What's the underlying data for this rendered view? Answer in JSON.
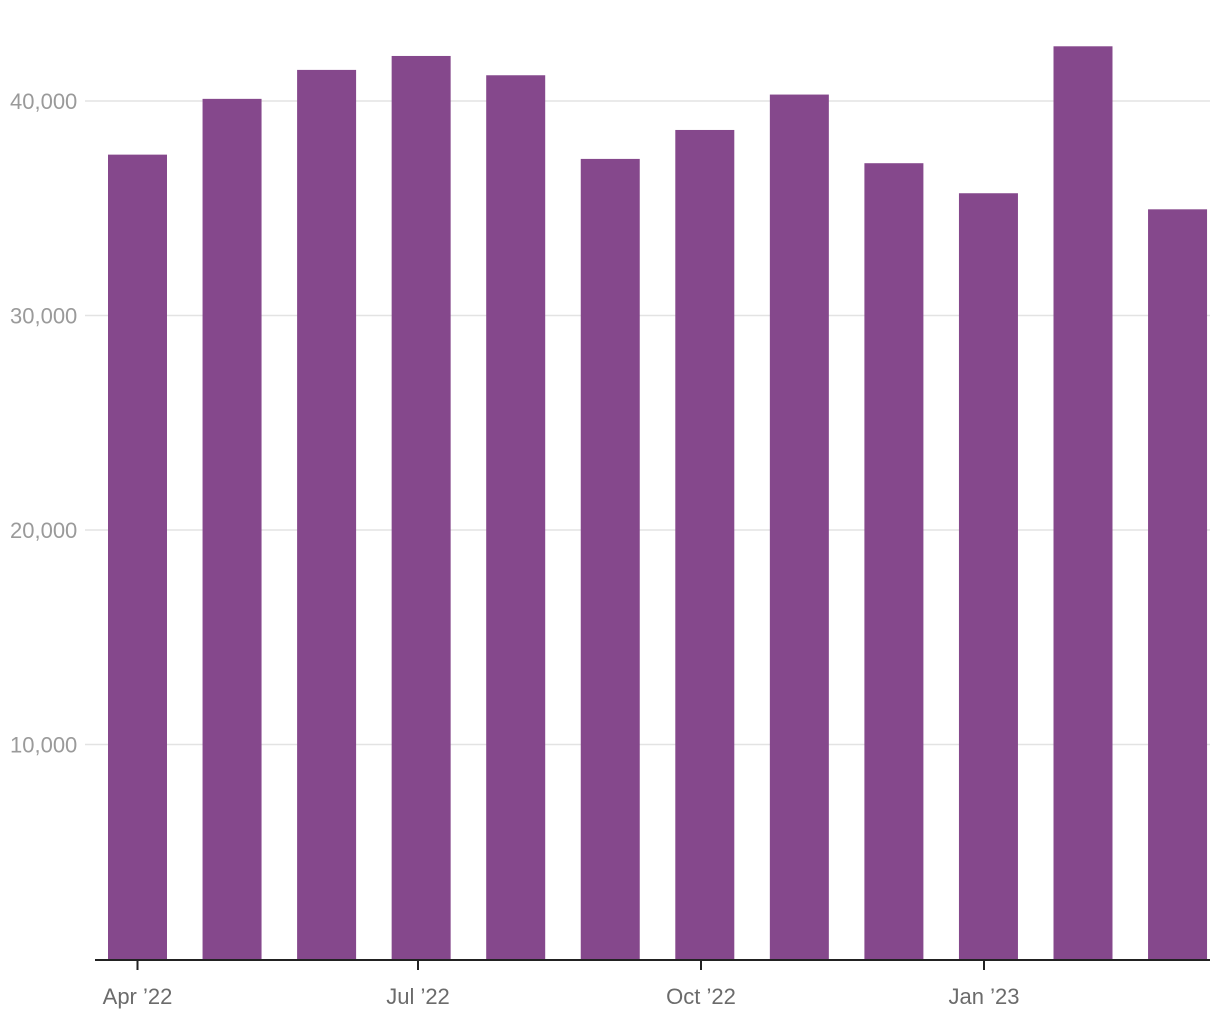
{
  "chart_data": {
    "type": "bar",
    "categories": [
      "Apr 2022",
      "May 2022",
      "Jun 2022",
      "Jul 2022",
      "Aug 2022",
      "Sep 2022",
      "Oct 2022",
      "Nov 2022",
      "Dec 2022",
      "Jan 2023",
      "Feb 2023",
      "Mar 2023"
    ],
    "values": [
      37500,
      40100,
      41450,
      42100,
      41200,
      37300,
      38650,
      40300,
      37100,
      35700,
      42550,
      34950
    ],
    "x_tick_labels": [
      {
        "category": "Apr 2022",
        "label": "Apr ’22"
      },
      {
        "category": "Jul 2022",
        "label": "Jul ’22"
      },
      {
        "category": "Oct 2022",
        "label": "Oct ’22"
      },
      {
        "category": "Jan 2023",
        "label": "Jan ’23"
      }
    ],
    "y_ticks": [
      10000,
      20000,
      30000,
      40000
    ],
    "y_tick_labels": [
      "10,000",
      "20,000",
      "30,000",
      "40,000"
    ],
    "ylim": [
      0,
      44000
    ],
    "grid": true,
    "bar_color": "#85488c",
    "title": "",
    "xlabel": "",
    "ylabel": ""
  }
}
